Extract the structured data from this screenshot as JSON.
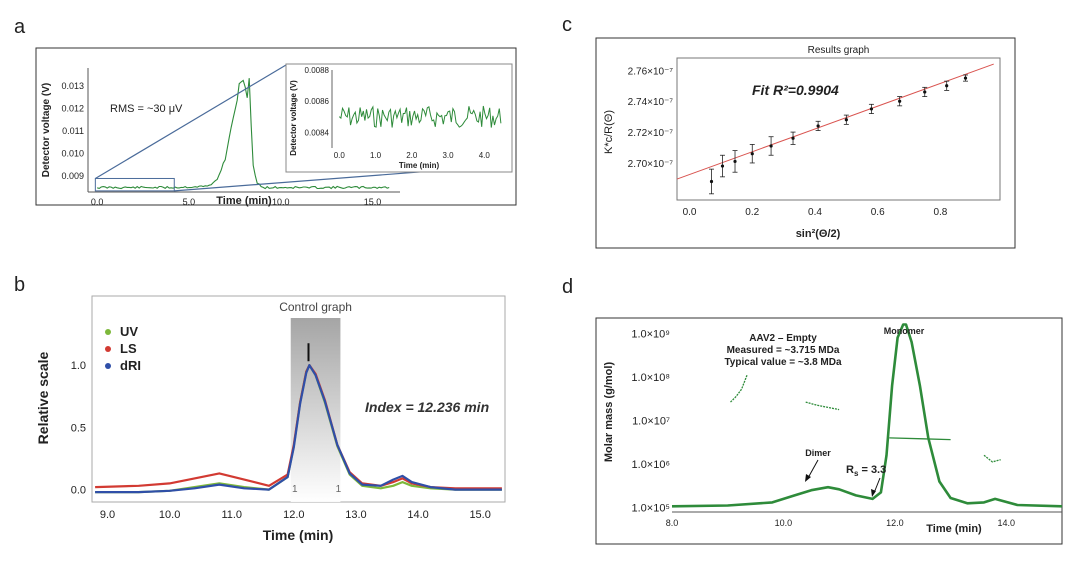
{
  "panels": {
    "a": "a",
    "b": "b",
    "c": "c",
    "d": "d"
  },
  "chart_data": [
    {
      "panel": "a",
      "type": "line",
      "xlabel": "Time (min)",
      "ylabel": "Detector voltage (V)",
      "xticks": [
        "0.0",
        "5.0",
        "10.0",
        "15.0"
      ],
      "yticks": [
        "0.009",
        "0.010",
        "0.011",
        "0.012",
        "0.013"
      ],
      "xlim": [
        -0.5,
        16.5
      ],
      "ylim": [
        0.0083,
        0.0138
      ],
      "annotation": "RMS = ~30 μV",
      "color": "#2e8b3a",
      "series": [
        {
          "x": [
            0,
            2,
            4,
            6,
            6.5,
            7,
            7.3,
            7.6,
            7.7,
            7.8,
            7.9,
            8.0,
            8.05,
            8.1,
            8.2,
            8.3,
            8.4,
            8.5,
            8.7,
            9,
            10,
            12,
            14,
            16
          ],
          "y": [
            0.0085,
            0.0085,
            0.0085,
            0.00855,
            0.0088,
            0.0098,
            0.0112,
            0.0122,
            0.0128,
            0.0137,
            0.0126,
            0.0137,
            0.0126,
            0.0137,
            0.012,
            0.0137,
            0.011,
            0.0095,
            0.0087,
            0.0085,
            0.0085,
            0.0085,
            0.0085,
            0.0085
          ]
        }
      ],
      "inset": {
        "xlabel": "Time (min)",
        "ylabel": "Detector voltage (V)",
        "xticks": [
          "0.0",
          "1.0",
          "2.0",
          "3.0",
          "4.0"
        ],
        "yticks": [
          "0.0084",
          "0.0086",
          "0.0088"
        ],
        "xlim": [
          -0.2,
          4.6
        ],
        "ylim": [
          0.0083,
          0.0088
        ],
        "noise_center": 0.0085,
        "noise_amplitude": 9e-05
      }
    },
    {
      "panel": "b",
      "type": "line",
      "title": "Control graph",
      "xlabel": "Time (min)",
      "ylabel": "Relative scale",
      "xticks": [
        "9.0",
        "10.0",
        "11.0",
        "12.0",
        "13.0",
        "14.0",
        "15.0"
      ],
      "yticks": [
        "0.0",
        "0.5",
        "1.0"
      ],
      "xlim": [
        8.75,
        15.4
      ],
      "ylim": [
        -0.1,
        1.38
      ],
      "annotation": "Index = 12.236 min",
      "region": {
        "start": 11.95,
        "end": 12.75,
        "start_label": "1",
        "end_label": "1"
      },
      "legend": {
        "placement": "top-left"
      },
      "series": [
        {
          "name": "UV",
          "color": "#7db83a",
          "x": [
            8.8,
            9.5,
            10.0,
            10.4,
            10.8,
            11.2,
            11.6,
            11.9,
            12.0,
            12.1,
            12.2,
            12.25,
            12.35,
            12.5,
            12.7,
            12.9,
            13.1,
            13.4,
            13.6,
            13.75,
            13.9,
            14.2,
            14.6,
            15.0,
            15.35
          ],
          "y": [
            -0.02,
            -0.02,
            -0.01,
            0.02,
            0.05,
            0.02,
            0.0,
            0.1,
            0.35,
            0.7,
            0.95,
            1.0,
            0.92,
            0.7,
            0.35,
            0.12,
            0.03,
            0.01,
            0.03,
            0.06,
            0.03,
            0.01,
            0.0,
            0.0,
            0.0
          ]
        },
        {
          "name": "LS",
          "color": "#d23a32",
          "x": [
            8.8,
            9.5,
            10.0,
            10.4,
            10.8,
            11.2,
            11.6,
            11.9,
            12.0,
            12.1,
            12.2,
            12.25,
            12.35,
            12.5,
            12.7,
            12.9,
            13.1,
            13.4,
            13.6,
            13.75,
            13.9,
            14.2,
            14.6,
            15.0,
            15.35
          ],
          "y": [
            0.02,
            0.03,
            0.05,
            0.09,
            0.13,
            0.08,
            0.03,
            0.12,
            0.36,
            0.7,
            0.95,
            1.0,
            0.93,
            0.72,
            0.36,
            0.14,
            0.05,
            0.03,
            0.06,
            0.09,
            0.05,
            0.02,
            0.01,
            0.01,
            0.01
          ]
        },
        {
          "name": "dRI",
          "color": "#2f4fa8",
          "x": [
            8.8,
            9.5,
            10.0,
            10.4,
            10.8,
            11.2,
            11.6,
            11.9,
            12.0,
            12.1,
            12.2,
            12.25,
            12.35,
            12.5,
            12.7,
            12.9,
            13.1,
            13.4,
            13.6,
            13.75,
            13.9,
            14.2,
            14.6,
            15.0,
            15.35
          ],
          "y": [
            -0.02,
            -0.02,
            -0.01,
            0.01,
            0.04,
            0.01,
            0.0,
            0.1,
            0.34,
            0.69,
            0.94,
            1.0,
            0.92,
            0.71,
            0.36,
            0.13,
            0.04,
            0.03,
            0.08,
            0.11,
            0.06,
            0.02,
            0.0,
            0.0,
            0.0
          ]
        }
      ]
    },
    {
      "panel": "c",
      "type": "scatter",
      "title": "Results graph",
      "xlabel": "sin²(Θ/2)",
      "ylabel": "K*c/R(Θ)",
      "xticks": [
        "0.0",
        "0.2",
        "0.4",
        "0.6",
        "0.8"
      ],
      "yticks": [
        "2.70×10⁻⁷",
        "2.72×10⁻⁷",
        "2.74×10⁻⁷",
        "2.76×10⁻⁷"
      ],
      "xlim": [
        -0.04,
        0.99
      ],
      "ylim": [
        2.676,
        2.768
      ],
      "annotation": "Fit R²=0.9904",
      "fit": {
        "slope": 0.0738,
        "intercept": 2.6925,
        "color": "#d9534f"
      },
      "points": {
        "x": [
          0.07,
          0.105,
          0.145,
          0.2,
          0.26,
          0.33,
          0.41,
          0.5,
          0.58,
          0.67,
          0.75,
          0.82,
          0.88
        ],
        "y": [
          2.688,
          2.698,
          2.701,
          2.706,
          2.711,
          2.716,
          2.724,
          2.728,
          2.735,
          2.74,
          2.746,
          2.75,
          2.755
        ],
        "err": [
          0.008,
          0.007,
          0.007,
          0.006,
          0.006,
          0.004,
          0.003,
          0.003,
          0.003,
          0.003,
          0.003,
          0.003,
          0.002
        ]
      }
    },
    {
      "panel": "d",
      "type": "line",
      "xlabel": "Time (min)",
      "ylabel": "Molar mass (g/mol)",
      "xticks": [
        "8.0",
        "10.0",
        "12.0",
        "14.0"
      ],
      "yticks": [
        "1.0×10⁵",
        "1.0×10⁶",
        "1.0×10⁷",
        "1.0×10⁸",
        "1.0×10⁹"
      ],
      "xlim": [
        8.0,
        15.0
      ],
      "ylim_log10": [
        4.9,
        9.35
      ],
      "annotations": {
        "line1": "AAV2 – Empty",
        "line2": "Measured = ~3.715 MDa",
        "line3": "Typical value = ~3.8 MDa",
        "monomer": "Monomer",
        "dimer": "Dimer",
        "rs_label": "R",
        "rs_sub": "s",
        "rs_value": " = 3.3"
      },
      "color": "#2e8b3a",
      "trace": {
        "x": [
          8.0,
          9.0,
          9.8,
          10.2,
          10.5,
          10.8,
          11.0,
          11.3,
          11.6,
          11.75,
          11.85,
          11.95,
          12.05,
          12.15,
          12.2,
          12.3,
          12.45,
          12.6,
          12.8,
          13.0,
          13.3,
          13.6,
          13.8,
          14.2,
          15.0
        ],
        "log10": [
          5.03,
          5.05,
          5.12,
          5.28,
          5.4,
          5.47,
          5.42,
          5.28,
          5.2,
          5.35,
          6.2,
          7.8,
          8.9,
          9.2,
          9.2,
          8.8,
          7.8,
          6.6,
          5.6,
          5.22,
          5.1,
          5.12,
          5.2,
          5.06,
          5.03
        ]
      },
      "mass_segments": [
        {
          "x": [
            9.05,
            9.15,
            9.25,
            9.35
          ],
          "log10": [
            7.42,
            7.55,
            7.72,
            8.05
          ]
        },
        {
          "x": [
            10.4,
            10.6,
            10.8,
            11.0
          ],
          "log10": [
            7.42,
            7.35,
            7.3,
            7.25
          ]
        },
        {
          "x": [
            11.9,
            12.5,
            13.0
          ],
          "log10": [
            6.6,
            6.58,
            6.56
          ]
        },
        {
          "x": [
            13.6,
            13.75,
            13.9
          ],
          "log10": [
            6.2,
            6.05,
            6.1
          ]
        }
      ]
    }
  ]
}
